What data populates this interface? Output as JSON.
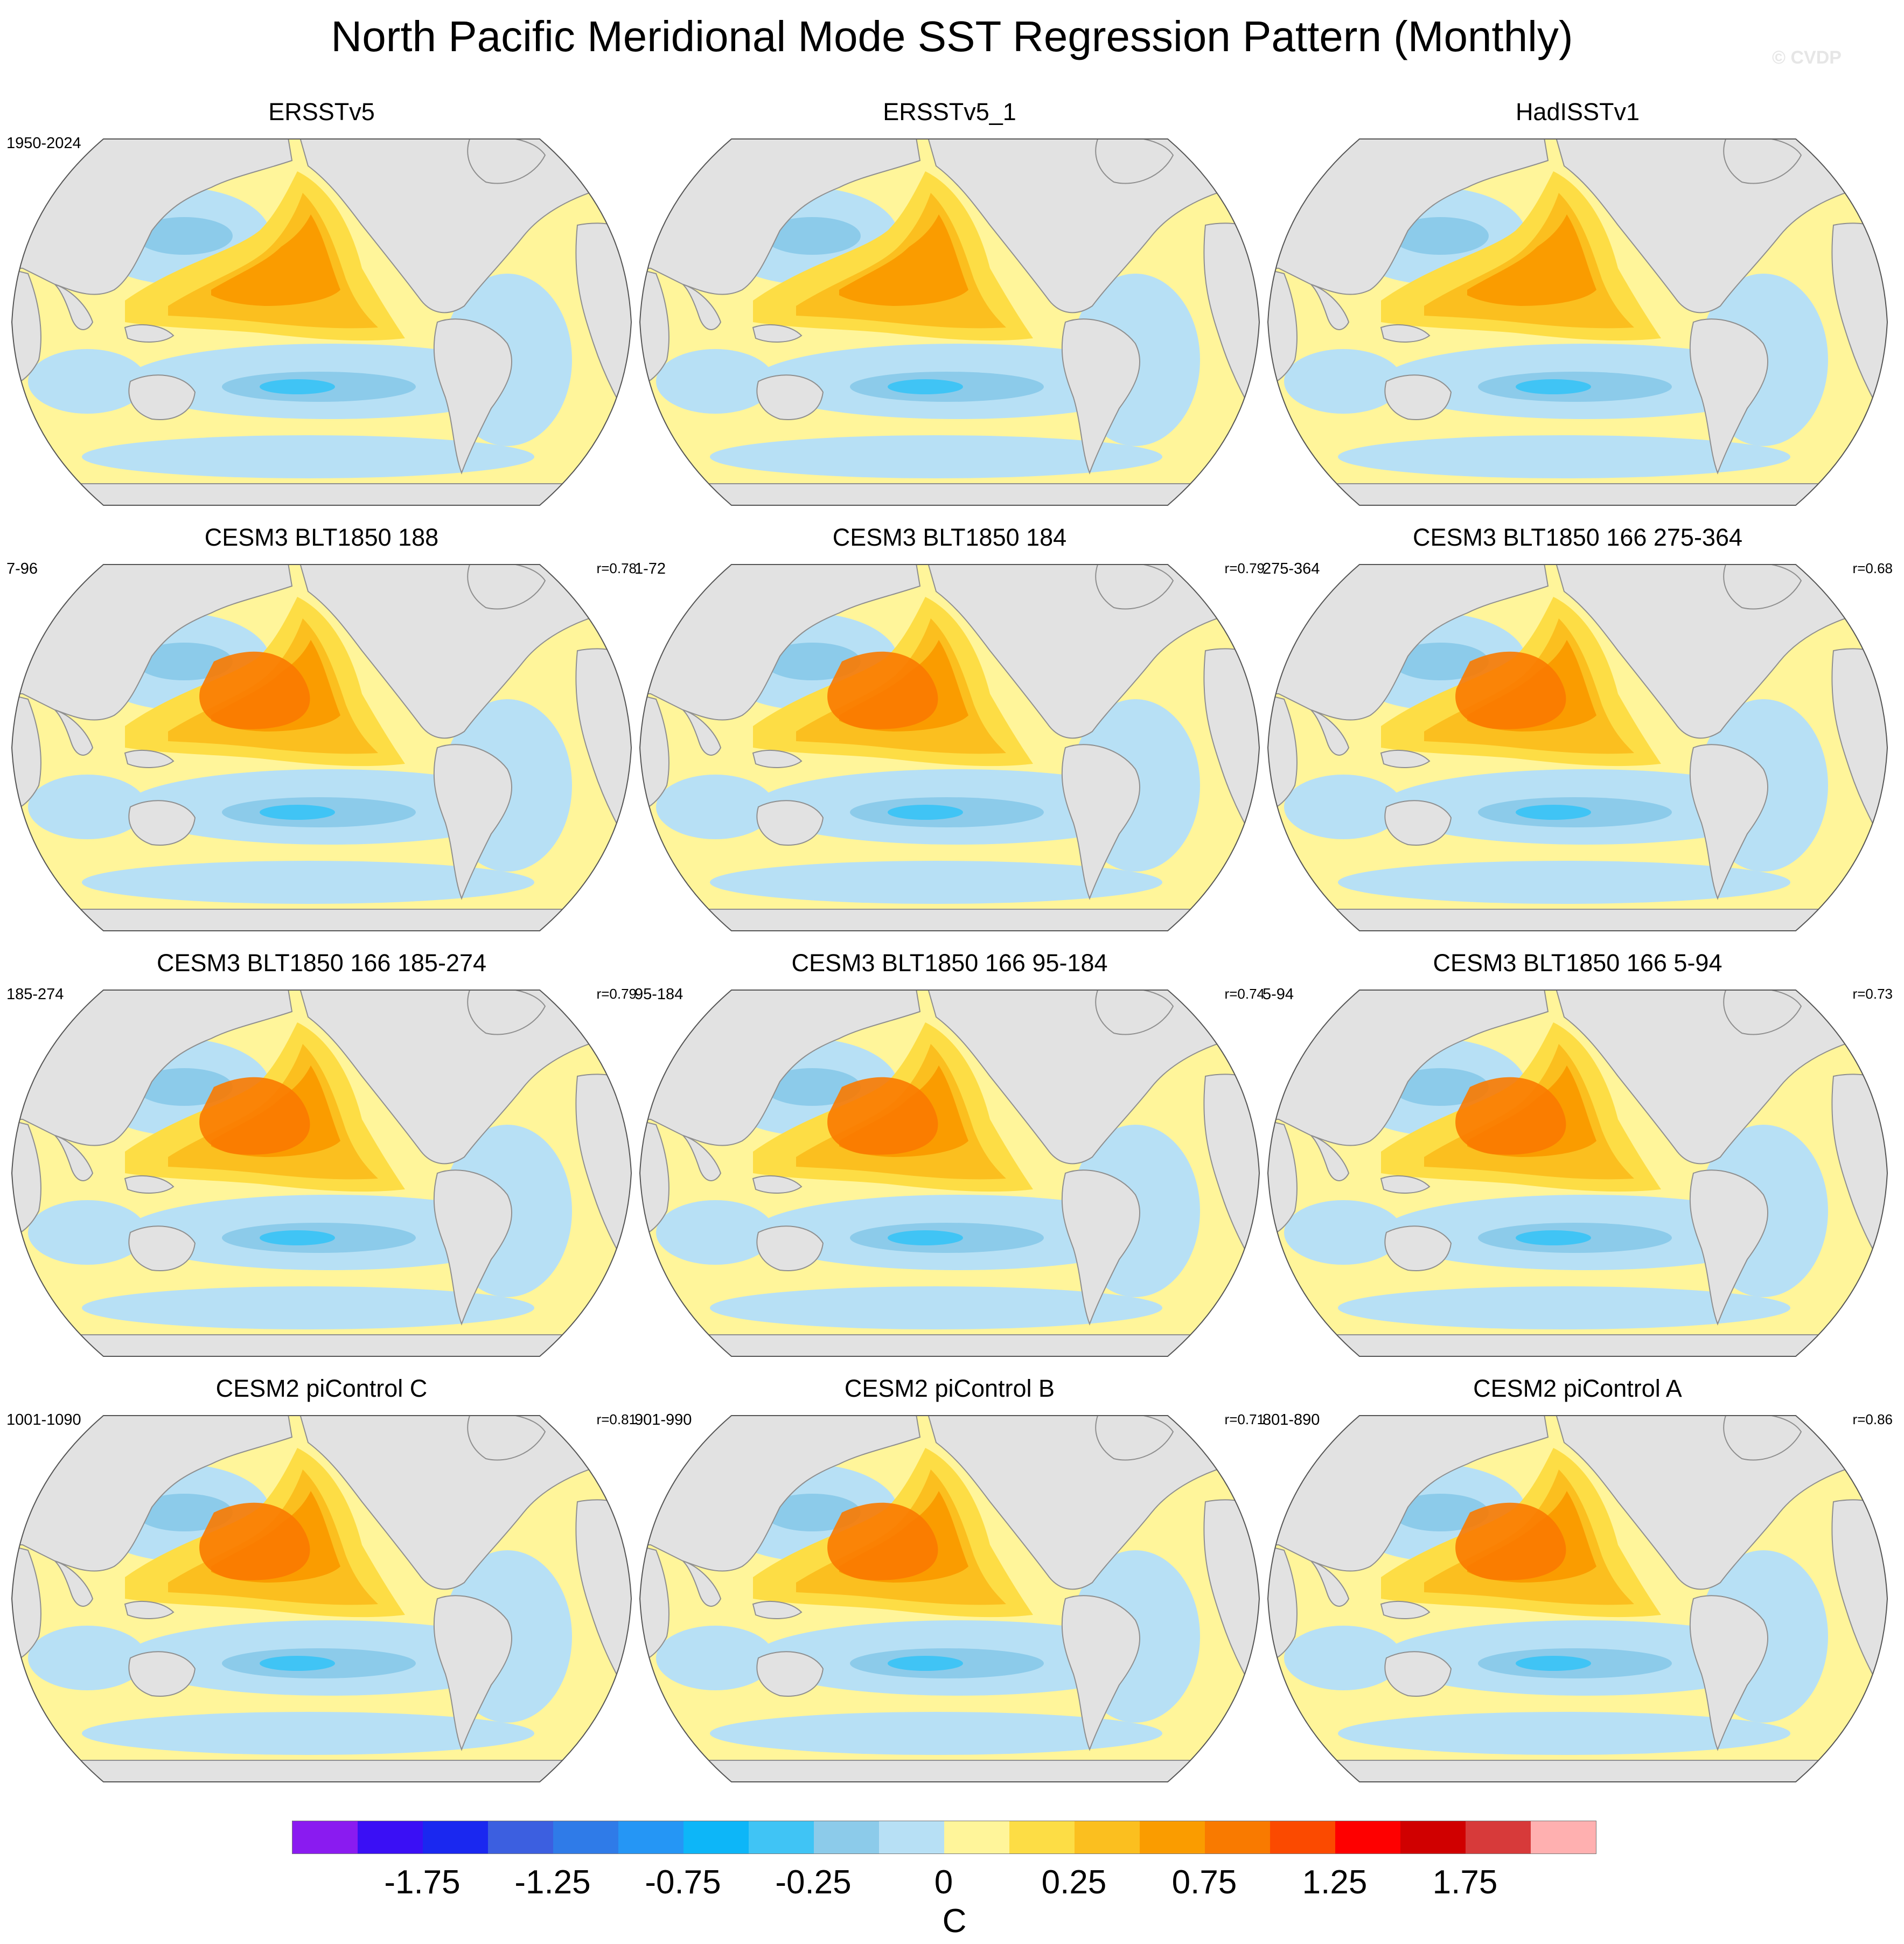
{
  "title": "North Pacific Meridional Mode SST Regression Pattern (Monthly)",
  "watermark": "© CVDP",
  "panels": [
    {
      "title": "ERSSTv5",
      "years": "1950-2024",
      "corr": ""
    },
    {
      "title": "ERSSTv5_1",
      "years": "",
      "corr": ""
    },
    {
      "title": "HadISSTv1",
      "years": "",
      "corr": ""
    },
    {
      "title": "CESM3 BLT1850 188",
      "years": "7-96",
      "corr": "r=0.78"
    },
    {
      "title": "CESM3 BLT1850 184",
      "years": "1-72",
      "corr": "r=0.79"
    },
    {
      "title": "CESM3 BLT1850 166 275-364",
      "years": "275-364",
      "corr": "r=0.68"
    },
    {
      "title": "CESM3 BLT1850 166 185-274",
      "years": "185-274",
      "corr": "r=0.79"
    },
    {
      "title": "CESM3 BLT1850 166 95-184",
      "years": "95-184",
      "corr": "r=0.74"
    },
    {
      "title": "CESM3 BLT1850 166 5-94",
      "years": "5-94",
      "corr": "r=0.73"
    },
    {
      "title": "CESM2 piControl C",
      "years": "1001-1090",
      "corr": "r=0.81"
    },
    {
      "title": "CESM2 piControl B",
      "years": "901-990",
      "corr": "r=0.71"
    },
    {
      "title": "CESM2 piControl A",
      "years": "801-890",
      "corr": "r=0.86"
    }
  ],
  "colorbar": {
    "unit": "C",
    "labels": [
      "-1.75",
      "-1.25",
      "-0.75",
      "-0.25",
      "0",
      "0.25",
      "0.75",
      "1.25",
      "1.75"
    ],
    "colors": [
      "#8a1bf0",
      "#3a0ff5",
      "#1a28f0",
      "#3c5fe0",
      "#2f7be8",
      "#2596f5",
      "#0db6f8",
      "#40c4f5",
      "#8ccbea",
      "#b7e0f5",
      "#fff59a",
      "#fddd45",
      "#fbbf1f",
      "#fa9c00",
      "#f97a00",
      "#fb4a00",
      "#fe0000",
      "#d00000",
      "#d73a3a",
      "#ffb0b0"
    ]
  },
  "colors": {
    "land": "#e2e2e2",
    "coast": "#8f8f8f"
  }
}
